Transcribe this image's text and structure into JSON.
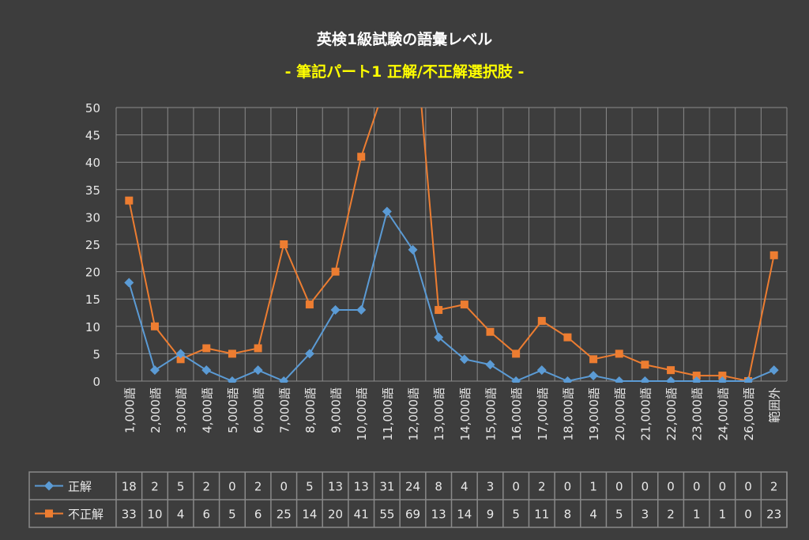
{
  "chart_data": {
    "type": "line",
    "title": "英検1級試験の語彙レベル",
    "subtitle": "- 筆記パート1 正解/不正解選択肢 -",
    "categories": [
      "1,000語",
      "2,000語",
      "3,000語",
      "4,000語",
      "5,000語",
      "6,000語",
      "7,000語",
      "8,000語",
      "9,000語",
      "10,000語",
      "11,000語",
      "12,000語",
      "13,000語",
      "14,000語",
      "15,000語",
      "16,000語",
      "17,000語",
      "18,000語",
      "19,000語",
      "20,000語",
      "21,000語",
      "22,000語",
      "23,000語",
      "24,000語",
      "26,000語",
      "範囲外"
    ],
    "series": [
      {
        "name": "正解",
        "color": "#5b9bd5",
        "marker": "diamond",
        "values": [
          18,
          2,
          5,
          2,
          0,
          2,
          0,
          5,
          13,
          13,
          31,
          24,
          8,
          4,
          3,
          0,
          2,
          0,
          1,
          0,
          0,
          0,
          0,
          0,
          0,
          2
        ]
      },
      {
        "name": "不正解",
        "color": "#ed7d31",
        "marker": "square",
        "values": [
          33,
          10,
          4,
          6,
          5,
          6,
          25,
          14,
          20,
          41,
          55,
          69,
          13,
          14,
          9,
          5,
          11,
          8,
          4,
          5,
          3,
          2,
          1,
          1,
          0,
          23
        ]
      }
    ],
    "ylim": [
      0,
      50
    ],
    "yticks": [
      0,
      5,
      10,
      15,
      20,
      25,
      30,
      35,
      40,
      45,
      50
    ],
    "grid": true,
    "legend": "data-table-bottom",
    "title_color": "#ffffff",
    "subtitle_color": "#ffff00"
  }
}
